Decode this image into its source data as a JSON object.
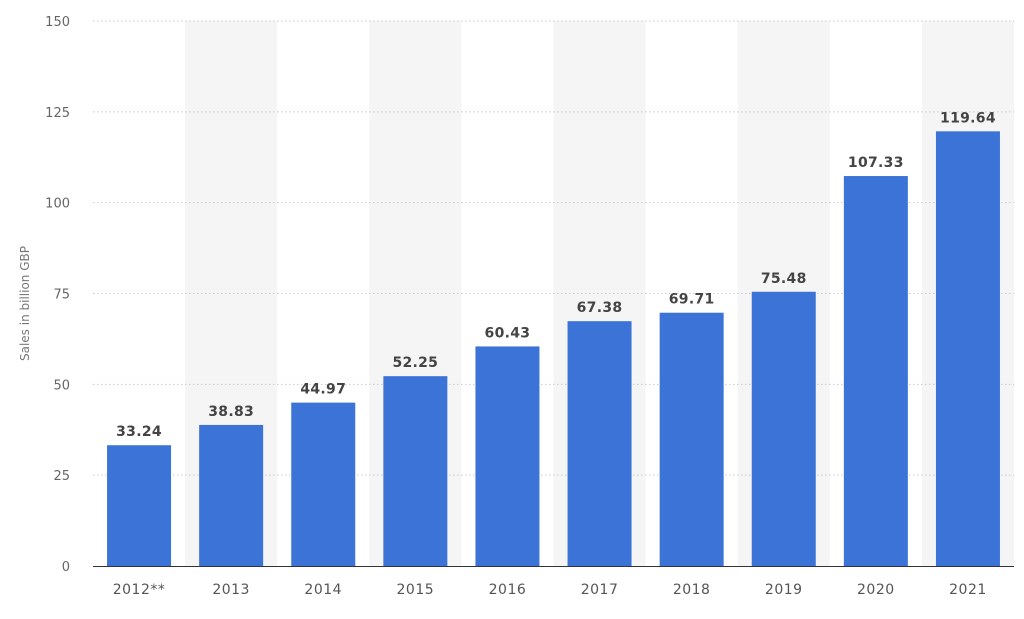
{
  "chart_data": {
    "type": "bar",
    "title": "",
    "xlabel": "",
    "ylabel": "Sales in billion GBP",
    "categories": [
      "2012**",
      "2013",
      "2014",
      "2015",
      "2016",
      "2017",
      "2018",
      "2019",
      "2020",
      "2021"
    ],
    "values": [
      33.24,
      38.83,
      44.97,
      52.25,
      60.43,
      67.38,
      69.71,
      75.48,
      107.33,
      119.64
    ],
    "value_labels": [
      "33.24",
      "38.83",
      "44.97",
      "52.25",
      "60.43",
      "67.38",
      "69.71",
      "75.48",
      "107.33",
      "119.64"
    ],
    "ylim": [
      0,
      150
    ],
    "yticks": [
      0,
      25,
      50,
      75,
      100,
      125,
      150
    ],
    "grid": true,
    "alternating_bands": true,
    "legend": "none",
    "colors": {
      "bar": "#3c73d7",
      "band": "#f5f5f5",
      "grid": "#c9c9c9"
    }
  }
}
